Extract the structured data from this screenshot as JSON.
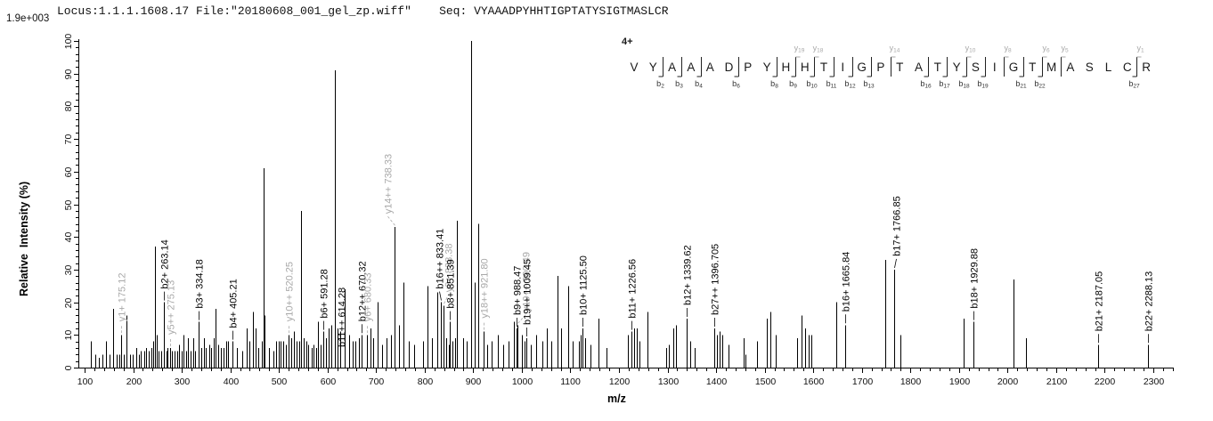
{
  "header": {
    "info": "Locus:1.1.1.1608.17 File:\"20180608_001_gel_zp.wiff\"    Seq: VYAAADPYHHTIGPTATYSIGTMASLCR",
    "max_intensity_label": "1.9e+003"
  },
  "axes": {
    "x_label": "m/z",
    "y_label": "Relative  Intensity (%)",
    "x_min": 100,
    "x_max": 2340,
    "x_major": 100,
    "x_minor": 20,
    "x_last_labeled": 2300,
    "y_min": 0,
    "y_max": 100,
    "y_major": 10,
    "y_minor": 2
  },
  "annotation": {
    "charge_label": "4+",
    "sequence": "VYAAADPYHHTIGPTATYSIGTMASLCR",
    "b_cleavages": [
      2,
      3,
      4,
      6,
      8,
      9,
      10,
      11,
      12,
      13,
      16,
      17,
      18,
      19,
      21,
      22,
      27
    ],
    "y_cleavages": [
      9,
      10,
      14,
      18,
      20,
      22,
      23,
      27
    ]
  },
  "colors": {
    "b_ion": "#000000",
    "y_ion": "#a8a8a8",
    "axis": "#000000",
    "sequence": "#1a1a1a"
  },
  "chart_data": {
    "type": "spectrum",
    "x_units": "m/z",
    "y_units": "Relative Intensity (%)",
    "labeled_peaks": [
      {
        "mz": 175.12,
        "intensity": 10,
        "label": "y1+ 175.12",
        "series": "y",
        "dx": 0
      },
      {
        "mz": 263.14,
        "intensity": 20,
        "label": "b2+ 263.14",
        "series": "b",
        "dx": 0
      },
      {
        "mz": 275.13,
        "intensity": 6,
        "label": "y5++ 275.13",
        "series": "y",
        "dx": 0
      },
      {
        "mz": 334.18,
        "intensity": 14,
        "label": "b3+ 334.18",
        "series": "b",
        "dx": 0
      },
      {
        "mz": 405.21,
        "intensity": 8,
        "label": "b4+ 405.21",
        "series": "b",
        "dx": 0
      },
      {
        "mz": 520.25,
        "intensity": 10,
        "label": "y10++ 520.25",
        "series": "y",
        "dx": 0
      },
      {
        "mz": 591.28,
        "intensity": 11,
        "label": "b6+ 591.28",
        "series": "b",
        "dx": 0
      },
      {
        "mz": 614.28,
        "intensity": 91,
        "label": "b11++ 614.28",
        "series": "b",
        "dx": 7
      },
      {
        "mz": 670.32,
        "intensity": 10,
        "label": "b12++ 670.32",
        "series": "b",
        "dx": 0
      },
      {
        "mz": 680.33,
        "intensity": 10,
        "label": "y6+ 680.33",
        "series": "y",
        "dx": 0
      },
      {
        "mz": 738.33,
        "intensity": 43,
        "label": "y14++ 738.33",
        "series": "y",
        "dx": -8
      },
      {
        "mz": 833.41,
        "intensity": 20,
        "label": "b16++ 833.41",
        "series": "b",
        "dx": -2
      },
      {
        "mz": 838.38,
        "intensity": 19,
        "label": "y8+ 838.38",
        "series": "y",
        "dx": 5
      },
      {
        "mz": 851.39,
        "intensity": 14,
        "label": "b8+ 851.39",
        "series": "b",
        "dx": 0
      },
      {
        "mz": 921.8,
        "intensity": 11,
        "label": "y18++ 921.80",
        "series": "y",
        "dx": 0
      },
      {
        "mz": 988.47,
        "intensity": 12,
        "label": "b9+ 988.47",
        "series": "b",
        "dx": 0
      },
      {
        "mz": 990.49,
        "intensity": 13,
        "label": "y19++ 990.49",
        "series": "y",
        "dx": 9
      },
      {
        "mz": 1009.45,
        "intensity": 9,
        "label": "b19++ 1009.45",
        "series": "b",
        "dx": 0
      },
      {
        "mz": 1125.5,
        "intensity": 12,
        "label": "b10+ 1125.50",
        "series": "b",
        "dx": 0
      },
      {
        "mz": 1226.56,
        "intensity": 11,
        "label": "b11+ 1226.56",
        "series": "b",
        "dx": 0
      },
      {
        "mz": 1339.62,
        "intensity": 15,
        "label": "b12+ 1339.62",
        "series": "b",
        "dx": 0
      },
      {
        "mz": 1396.705,
        "intensity": 12,
        "label": "b27++ 1396.705",
        "series": "b",
        "dx": 0
      },
      {
        "mz": 1665.84,
        "intensity": 13,
        "label": "b16+ 1665.84",
        "series": "b",
        "dx": 0
      },
      {
        "mz": 1766.85,
        "intensity": 30,
        "label": "b17+ 1766.85",
        "series": "b",
        "dx": 2
      },
      {
        "mz": 1929.88,
        "intensity": 14,
        "label": "b18+ 1929.88",
        "series": "b",
        "dx": 0
      },
      {
        "mz": 2187.05,
        "intensity": 7,
        "label": "b21+ 2187.05",
        "series": "b",
        "dx": 0
      },
      {
        "mz": 2288.13,
        "intensity": 7,
        "label": "b22+ 2288.13",
        "series": "b",
        "dx": 0
      }
    ],
    "background_peaks": [
      [
        112,
        8
      ],
      [
        122,
        4
      ],
      [
        129,
        3
      ],
      [
        136,
        4
      ],
      [
        144,
        8
      ],
      [
        152,
        4
      ],
      [
        159,
        18
      ],
      [
        166,
        4
      ],
      [
        171,
        4
      ],
      [
        181,
        4
      ],
      [
        186,
        16
      ],
      [
        193,
        4
      ],
      [
        199,
        4
      ],
      [
        206,
        6
      ],
      [
        211,
        4
      ],
      [
        216,
        5
      ],
      [
        222,
        5
      ],
      [
        227,
        6
      ],
      [
        232,
        5
      ],
      [
        237,
        6
      ],
      [
        241,
        8
      ],
      [
        244,
        37
      ],
      [
        248,
        10
      ],
      [
        252,
        5
      ],
      [
        257,
        5
      ],
      [
        268,
        5
      ],
      [
        271,
        6
      ],
      [
        280,
        5
      ],
      [
        285,
        5
      ],
      [
        290,
        5
      ],
      [
        295,
        7
      ],
      [
        299,
        5
      ],
      [
        304,
        10
      ],
      [
        309,
        5
      ],
      [
        313,
        9
      ],
      [
        318,
        5
      ],
      [
        323,
        9
      ],
      [
        328,
        5
      ],
      [
        340,
        6
      ],
      [
        345,
        9
      ],
      [
        350,
        6
      ],
      [
        356,
        7
      ],
      [
        361,
        6
      ],
      [
        366,
        9
      ],
      [
        370,
        18
      ],
      [
        375,
        7
      ],
      [
        381,
        6
      ],
      [
        386,
        6
      ],
      [
        391,
        8
      ],
      [
        396,
        8
      ],
      [
        414,
        6
      ],
      [
        424,
        5
      ],
      [
        433,
        12
      ],
      [
        440,
        8
      ],
      [
        446,
        17
      ],
      [
        452,
        12
      ],
      [
        458,
        6
      ],
      [
        464,
        8
      ],
      [
        468,
        61
      ],
      [
        471,
        16
      ],
      [
        480,
        6
      ],
      [
        488,
        5
      ],
      [
        494,
        8
      ],
      [
        499,
        8
      ],
      [
        504,
        8
      ],
      [
        509,
        8
      ],
      [
        514,
        7
      ],
      [
        526,
        9
      ],
      [
        531,
        11
      ],
      [
        536,
        8
      ],
      [
        541,
        8
      ],
      [
        545,
        48
      ],
      [
        551,
        9
      ],
      [
        556,
        8
      ],
      [
        561,
        7
      ],
      [
        568,
        6
      ],
      [
        572,
        7
      ],
      [
        577,
        6
      ],
      [
        581,
        14
      ],
      [
        586,
        7
      ],
      [
        597,
        9
      ],
      [
        603,
        12
      ],
      [
        608,
        13
      ],
      [
        620,
        12
      ],
      [
        627,
        11
      ],
      [
        636,
        24
      ],
      [
        645,
        10
      ],
      [
        652,
        8
      ],
      [
        658,
        8
      ],
      [
        665,
        9
      ],
      [
        688,
        12
      ],
      [
        694,
        9
      ],
      [
        703,
        20
      ],
      [
        712,
        7
      ],
      [
        722,
        9
      ],
      [
        731,
        10
      ],
      [
        748,
        13
      ],
      [
        757,
        26
      ],
      [
        767,
        8
      ],
      [
        779,
        7
      ],
      [
        797,
        8
      ],
      [
        806,
        25
      ],
      [
        815,
        9
      ],
      [
        826,
        23
      ],
      [
        845,
        9
      ],
      [
        849,
        7
      ],
      [
        858,
        8
      ],
      [
        862,
        9
      ],
      [
        866,
        45
      ],
      [
        879,
        9
      ],
      [
        886,
        8
      ],
      [
        895,
        100
      ],
      [
        903,
        26
      ],
      [
        911,
        44
      ],
      [
        928,
        7
      ],
      [
        938,
        8
      ],
      [
        950,
        10
      ],
      [
        962,
        7
      ],
      [
        973,
        8
      ],
      [
        984,
        14
      ],
      [
        1000,
        10
      ],
      [
        1005,
        8
      ],
      [
        1018,
        7
      ],
      [
        1030,
        10
      ],
      [
        1042,
        8
      ],
      [
        1052,
        12
      ],
      [
        1061,
        8
      ],
      [
        1073,
        28
      ],
      [
        1080,
        12
      ],
      [
        1095,
        25
      ],
      [
        1105,
        8
      ],
      [
        1118,
        8
      ],
      [
        1122,
        10
      ],
      [
        1131,
        9
      ],
      [
        1142,
        7
      ],
      [
        1158,
        15
      ],
      [
        1175,
        6
      ],
      [
        1218,
        10
      ],
      [
        1232,
        12
      ],
      [
        1237,
        12
      ],
      [
        1243,
        8
      ],
      [
        1259,
        17
      ],
      [
        1297,
        6
      ],
      [
        1303,
        7
      ],
      [
        1311,
        12
      ],
      [
        1318,
        13
      ],
      [
        1347,
        8
      ],
      [
        1355,
        6
      ],
      [
        1402,
        10
      ],
      [
        1408,
        11
      ],
      [
        1412,
        10
      ],
      [
        1426,
        7
      ],
      [
        1457,
        9
      ],
      [
        1460,
        4
      ],
      [
        1484,
        8
      ],
      [
        1505,
        15
      ],
      [
        1512,
        17
      ],
      [
        1522,
        10
      ],
      [
        1567,
        9
      ],
      [
        1575,
        16
      ],
      [
        1583,
        12
      ],
      [
        1591,
        10
      ],
      [
        1596,
        10
      ],
      [
        1648,
        20
      ],
      [
        1749,
        33
      ],
      [
        1779,
        10
      ],
      [
        1910,
        15
      ],
      [
        2013,
        27
      ],
      [
        2037,
        9
      ]
    ]
  }
}
